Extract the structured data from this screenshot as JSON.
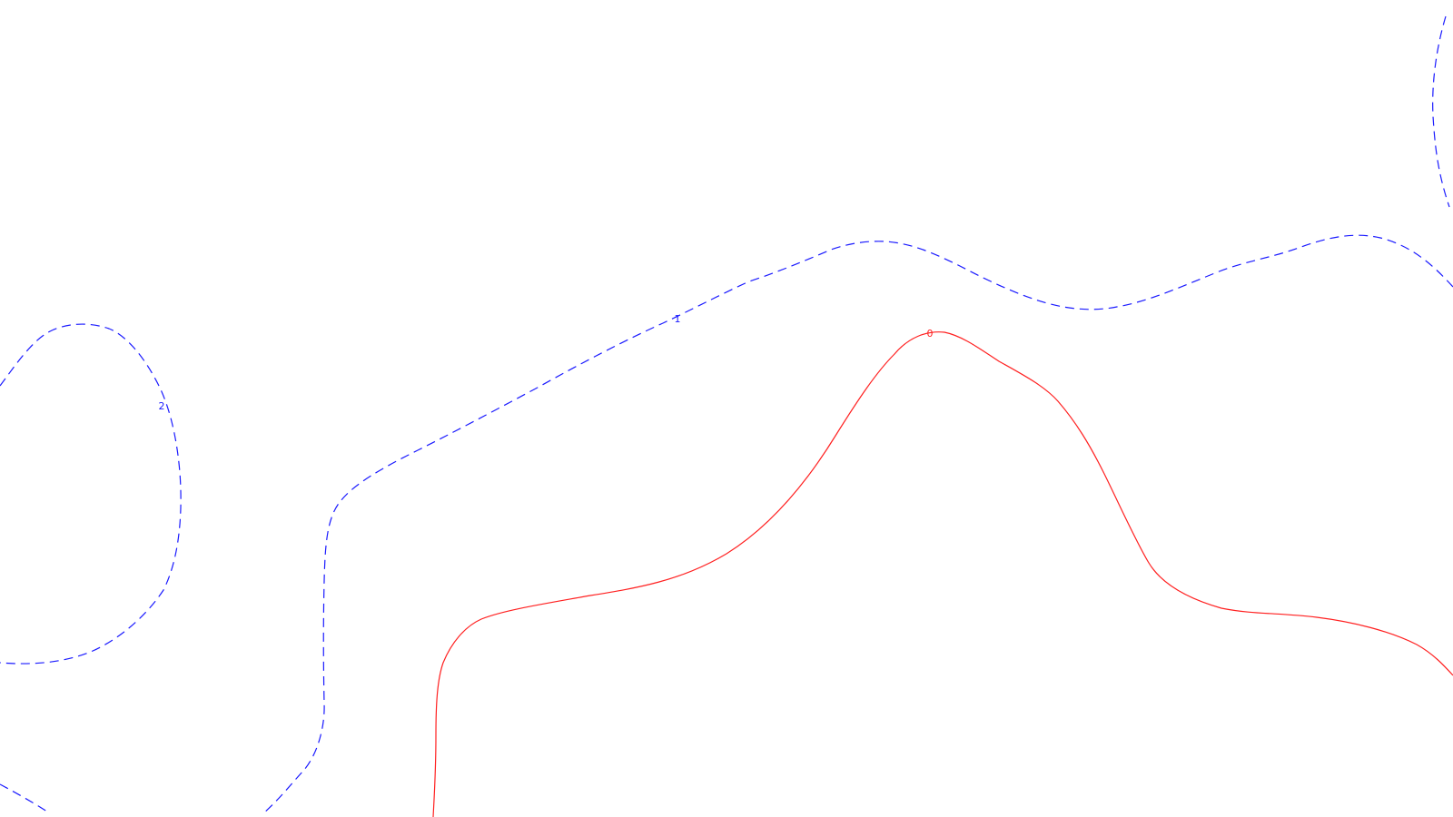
{
  "map": {
    "background": "#ffffff",
    "contours": [
      {
        "id": "contour-0-main",
        "level": 0,
        "label": "0",
        "style": "solid",
        "color": "#ff2020"
      },
      {
        "id": "contour-1-main",
        "level": 1,
        "label": "1",
        "style": "dashed",
        "color": "#1a1aff"
      },
      {
        "id": "contour-1-lower-left",
        "level": 1,
        "label": "",
        "style": "dashed",
        "color": "#1a1aff"
      },
      {
        "id": "contour-2-left",
        "level": 2,
        "label": "2",
        "style": "dashed",
        "color": "#1a1aff"
      },
      {
        "id": "contour-edge-right",
        "level": null,
        "label": "",
        "style": "dashed",
        "color": "#1a1aff"
      }
    ]
  }
}
